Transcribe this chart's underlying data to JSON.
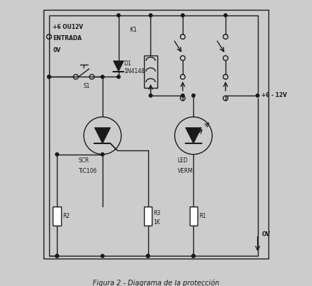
{
  "title": "Figura 2 - Diagrama de la protección",
  "bg_color": "#cccccc",
  "fg_color": "#1a1a1a",
  "figsize": [
    4.44,
    4.07
  ],
  "dpi": 100,
  "labels": {
    "input_voltage": "+6 OU12V",
    "entrada": "ENTRADA",
    "ov_top": "0V",
    "d1": "D1",
    "in4148": "1N4148",
    "s1": "S1",
    "k1": "K1",
    "scr": "SCR",
    "tic106": "TIC106",
    "led": "LED",
    "verm": "VERM.",
    "r1": "R1",
    "r2": "R2",
    "r3": "R3",
    "r3val": "1K",
    "plus6_12v": "+6 - 12V",
    "ov_right": "OV"
  }
}
